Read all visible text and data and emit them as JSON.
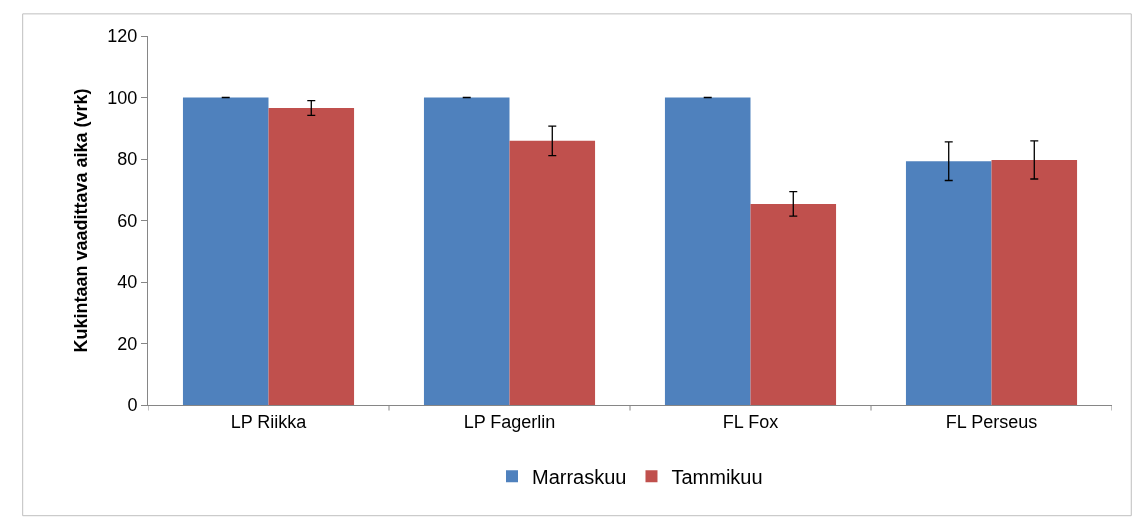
{
  "chart_data": {
    "type": "bar",
    "ylabel": "Kukintaan vaadittava aika (vrk)",
    "categories": [
      "LP Riikka",
      "LP Fagerlin",
      "FL Fox",
      "FL Perseus"
    ],
    "series": [
      {
        "name": "Marraskuu",
        "color": "#4f81bd",
        "values": [
          100,
          100,
          100,
          79.3
        ],
        "errors": [
          0,
          0,
          0,
          6.3
        ]
      },
      {
        "name": "Tammikuu",
        "color": "#c0504d",
        "values": [
          96.6,
          85.9,
          65.4,
          79.7
        ],
        "errors": [
          2.4,
          4.8,
          4,
          6.2
        ]
      }
    ],
    "ylim": [
      0,
      120
    ],
    "yticks": [
      0,
      20,
      40,
      60,
      80,
      100,
      120
    ],
    "legend": "bottom"
  }
}
